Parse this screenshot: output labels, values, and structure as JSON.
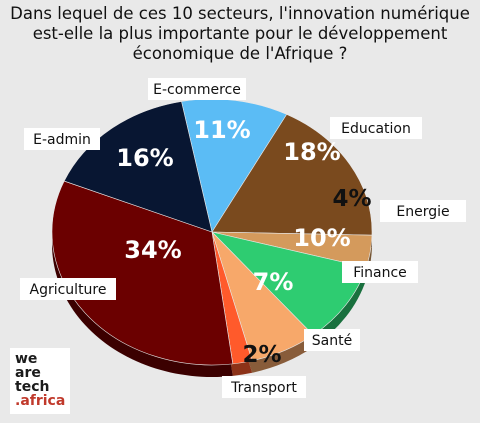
{
  "title_lines": [
    "Dans lequel de ces 10 secteurs, l'innovation numérique",
    "est-elle la plus importante pour le développement",
    "économique de l'Afrique ?"
  ],
  "chart_data": {
    "type": "pie",
    "title": "Dans lequel de ces 10 secteurs, l'innovation numérique est-elle la plus importante pour le développement économique de l'Afrique ?",
    "slices": [
      {
        "label": "E-commerce",
        "value": 11,
        "display": "11%",
        "color": "#5bbcf5"
      },
      {
        "label": "Education",
        "value": 18,
        "display": "18%",
        "color": "#7a4a1e"
      },
      {
        "label": "Energie",
        "value": 4,
        "display": "4%",
        "color": "#d49a5c"
      },
      {
        "label": "Finance",
        "value": 10,
        "display": "10%",
        "color": "#2ecc71"
      },
      {
        "label": "Santé",
        "value": 7,
        "display": "7%",
        "color": "#f7a86a"
      },
      {
        "label": "Transport",
        "value": 2,
        "display": "2%",
        "color": "#ff5a2b"
      },
      {
        "label": "Agriculture",
        "value": 34,
        "display": "34%",
        "color": "#6b0000"
      },
      {
        "label": "E-admin",
        "value": 16,
        "display": "16%",
        "color": "#081632"
      }
    ]
  },
  "logo": {
    "lines": [
      "we",
      "are",
      "tech",
      ".africa"
    ]
  }
}
